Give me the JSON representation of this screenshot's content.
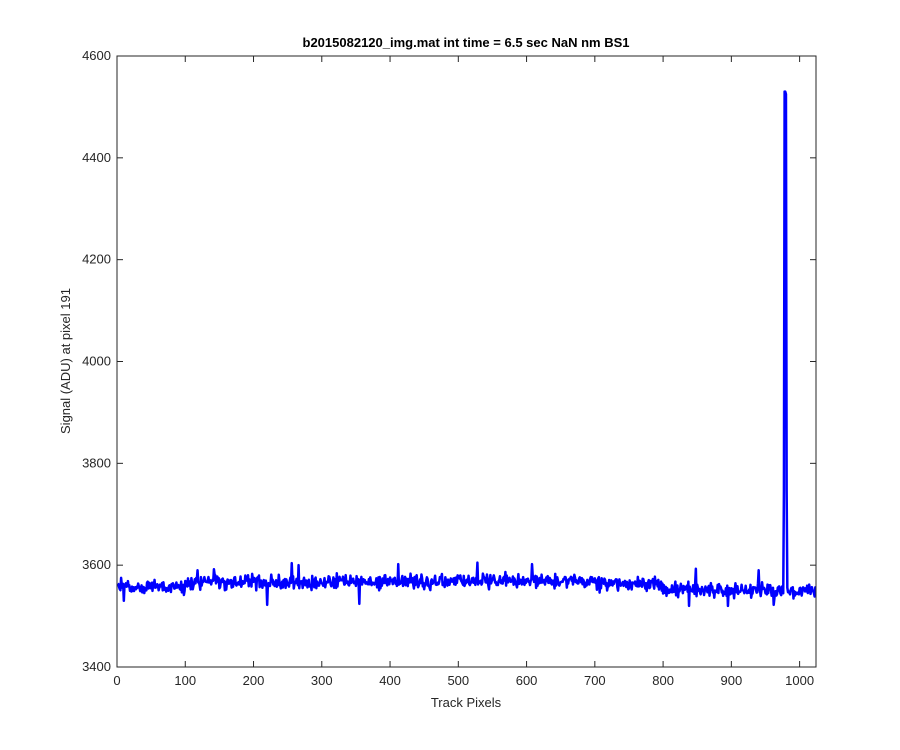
{
  "chart_data": {
    "type": "line",
    "title": "b2015082120_img.mat int time = 6.5 sec  NaN nm BS1",
    "xlabel": "Track Pixels",
    "ylabel": "Signal (ADU) at pixel 191",
    "xlim": [
      0,
      1024
    ],
    "ylim": [
      3400,
      4600
    ],
    "xticks": [
      0,
      100,
      200,
      300,
      400,
      500,
      600,
      700,
      800,
      900,
      1000
    ],
    "xtick_labels": [
      "0",
      "100",
      "200",
      "300",
      "400",
      "500",
      "600",
      "700",
      "800",
      "900",
      "1000"
    ],
    "yticks": [
      3400,
      3600,
      3800,
      4000,
      4200,
      4400,
      4600
    ],
    "ytick_labels": [
      "3400",
      "3600",
      "3800",
      "4000",
      "4200",
      "4400",
      "4600"
    ],
    "grid": false,
    "line_color": "#0000ff",
    "series": [
      {
        "baseline_segments": [
          {
            "x_start": 0,
            "x_end": 100,
            "mean": 3557
          },
          {
            "x_start": 100,
            "x_end": 300,
            "mean": 3566
          },
          {
            "x_start": 300,
            "x_end": 500,
            "mean": 3567
          },
          {
            "x_start": 500,
            "x_end": 700,
            "mean": 3569
          },
          {
            "x_start": 700,
            "x_end": 800,
            "mean": 3563
          },
          {
            "x_start": 800,
            "x_end": 900,
            "mean": 3552
          },
          {
            "x_start": 900,
            "x_end": 1024,
            "mean": 3550
          }
        ],
        "noise_amplitude": 14,
        "peak": {
          "x_start": 977,
          "x_end": 981,
          "y_max": 4530
        },
        "notable_points": [
          {
            "x": 6,
            "y": 3575
          },
          {
            "x": 10,
            "y": 3530
          },
          {
            "x": 118,
            "y": 3590
          },
          {
            "x": 142,
            "y": 3592
          },
          {
            "x": 220,
            "y": 3522
          },
          {
            "x": 256,
            "y": 3604
          },
          {
            "x": 266,
            "y": 3600
          },
          {
            "x": 355,
            "y": 3524
          },
          {
            "x": 412,
            "y": 3602
          },
          {
            "x": 528,
            "y": 3605
          },
          {
            "x": 608,
            "y": 3602
          },
          {
            "x": 838,
            "y": 3520
          },
          {
            "x": 848,
            "y": 3593
          },
          {
            "x": 895,
            "y": 3520
          },
          {
            "x": 940,
            "y": 3590
          },
          {
            "x": 962,
            "y": 3522
          },
          {
            "x": 978,
            "y": 4530
          },
          {
            "x": 980,
            "y": 4525
          }
        ]
      }
    ]
  }
}
